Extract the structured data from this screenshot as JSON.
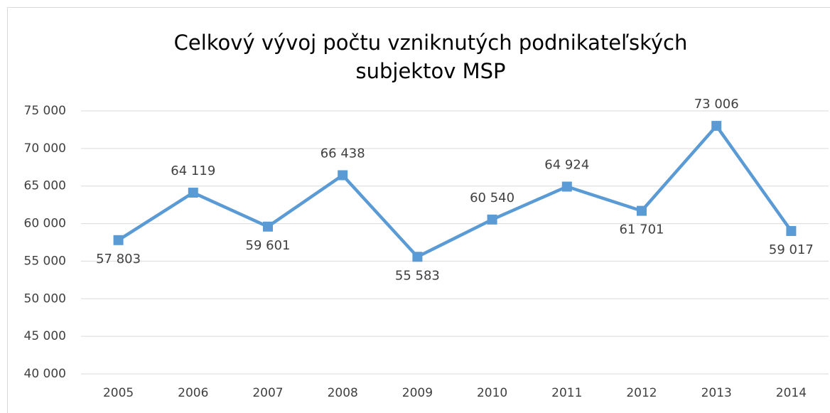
{
  "chart_data": {
    "type": "line",
    "title": [
      "Celkový vývoj počtu vzniknutých podnikateľských",
      "subjektov MSP"
    ],
    "categories": [
      "2005",
      "2006",
      "2007",
      "2008",
      "2009",
      "2010",
      "2011",
      "2012",
      "2013",
      "2014"
    ],
    "series": [
      {
        "color": "#5b9bd5",
        "values": [
          57803,
          64119,
          59601,
          66438,
          55583,
          60540,
          64924,
          61701,
          73006,
          59017
        ],
        "value_labels": [
          "57 803",
          "64 119",
          "59 601",
          "66 438",
          "55 583",
          "60 540",
          "64 924",
          "61 701",
          "73 006",
          "59 017"
        ]
      }
    ],
    "ylim": [
      40000,
      75000
    ],
    "yticks": [
      {
        "value": 40000,
        "label": "40 000"
      },
      {
        "value": 45000,
        "label": "45 000"
      },
      {
        "value": 50000,
        "label": "50 000"
      },
      {
        "value": 55000,
        "label": "55 000"
      },
      {
        "value": 60000,
        "label": "60 000"
      },
      {
        "value": 65000,
        "label": "65 000"
      },
      {
        "value": 70000,
        "label": "70 000"
      },
      {
        "value": 75000,
        "label": "75 000"
      }
    ],
    "grid": true
  }
}
